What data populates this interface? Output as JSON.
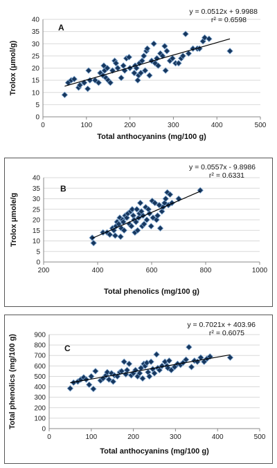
{
  "chart_data": [
    {
      "type": "scatter",
      "panel_label": "A",
      "xlabel": "Total anthocyanins (mg/100 g)",
      "ylabel": "Trolox (μmol/g)",
      "xlim": [
        0,
        500
      ],
      "ylim": [
        0,
        40
      ],
      "xticks": [
        "0",
        "100",
        "200",
        "300",
        "400",
        "500"
      ],
      "yticks": [
        "0",
        "5",
        "10",
        "15",
        "20",
        "25",
        "30",
        "35",
        "40"
      ],
      "equation": "y = 0.0512x + 9.9988",
      "r2": "r² = 0.6598",
      "trendline": {
        "slope": 0.0512,
        "intercept": 9.9988,
        "x_range": [
          50,
          430
        ]
      },
      "marker_color": "#17375e",
      "points": [
        [
          50,
          9
        ],
        [
          58,
          14
        ],
        [
          65,
          15
        ],
        [
          72,
          15.5
        ],
        [
          82,
          12
        ],
        [
          85,
          13
        ],
        [
          95,
          14
        ],
        [
          103,
          11.5
        ],
        [
          105,
          19
        ],
        [
          108,
          15
        ],
        [
          120,
          15
        ],
        [
          128,
          14
        ],
        [
          132,
          18
        ],
        [
          138,
          17
        ],
        [
          140,
          21
        ],
        [
          142,
          19
        ],
        [
          145,
          16
        ],
        [
          148,
          20
        ],
        [
          150,
          15
        ],
        [
          155,
          14
        ],
        [
          160,
          19
        ],
        [
          165,
          23
        ],
        [
          168,
          22
        ],
        [
          172,
          20
        ],
        [
          180,
          16
        ],
        [
          185,
          21
        ],
        [
          188,
          19
        ],
        [
          192,
          24
        ],
        [
          198,
          24.5
        ],
        [
          200,
          20
        ],
        [
          210,
          18
        ],
        [
          212,
          21
        ],
        [
          215,
          20
        ],
        [
          218,
          15
        ],
        [
          220,
          17
        ],
        [
          222,
          22
        ],
        [
          225,
          18
        ],
        [
          228,
          23
        ],
        [
          232,
          25
        ],
        [
          235,
          19
        ],
        [
          238,
          27
        ],
        [
          240,
          28
        ],
        [
          245,
          17
        ],
        [
          250,
          23
        ],
        [
          255,
          30
        ],
        [
          258,
          22
        ],
        [
          262,
          24
        ],
        [
          265,
          21
        ],
        [
          270,
          26
        ],
        [
          275,
          25
        ],
        [
          280,
          29
        ],
        [
          282,
          19
        ],
        [
          285,
          27
        ],
        [
          292,
          23
        ],
        [
          298,
          24
        ],
        [
          305,
          22
        ],
        [
          312,
          22
        ],
        [
          318,
          24
        ],
        [
          322,
          25
        ],
        [
          328,
          34
        ],
        [
          335,
          26
        ],
        [
          345,
          28
        ],
        [
          355,
          28
        ],
        [
          360,
          28
        ],
        [
          368,
          31
        ],
        [
          372,
          32.5
        ],
        [
          382,
          32
        ],
        [
          430,
          27
        ]
      ]
    },
    {
      "type": "scatter",
      "panel_label": "B",
      "xlabel": "Total phenolics (mg/100 g)",
      "ylabel": "Trolox μmole/g",
      "xlim": [
        200,
        1000
      ],
      "ylim": [
        0,
        40
      ],
      "xticks": [
        "200",
        "400",
        "600",
        "800",
        "1000"
      ],
      "yticks": [
        "0",
        "5",
        "10",
        "15",
        "20",
        "25",
        "30",
        "35",
        "40"
      ],
      "equation": "y = 0.0557x - 9.8986",
      "r2": "r² = 0.6331",
      "trendline": {
        "slope": 0.0557,
        "intercept": -9.8986,
        "x_range": [
          380,
          780
        ]
      },
      "marker_color": "#17375e",
      "points": [
        [
          380,
          11.5
        ],
        [
          385,
          9
        ],
        [
          420,
          14
        ],
        [
          435,
          14
        ],
        [
          445,
          13
        ],
        [
          455,
          16
        ],
        [
          460,
          15
        ],
        [
          465,
          12.5
        ],
        [
          468,
          17
        ],
        [
          472,
          19
        ],
        [
          478,
          18
        ],
        [
          482,
          21
        ],
        [
          485,
          12
        ],
        [
          488,
          16
        ],
        [
          492,
          20
        ],
        [
          495,
          19
        ],
        [
          498,
          15
        ],
        [
          502,
          22
        ],
        [
          508,
          21
        ],
        [
          512,
          23
        ],
        [
          518,
          18
        ],
        [
          522,
          24
        ],
        [
          525,
          17
        ],
        [
          528,
          25
        ],
        [
          532,
          22
        ],
        [
          535,
          20
        ],
        [
          538,
          14
        ],
        [
          542,
          19
        ],
        [
          545,
          25
        ],
        [
          548,
          15
        ],
        [
          552,
          21
        ],
        [
          555,
          23
        ],
        [
          558,
          28
        ],
        [
          562,
          24
        ],
        [
          565,
          17
        ],
        [
          568,
          22
        ],
        [
          572,
          18
        ],
        [
          578,
          26
        ],
        [
          582,
          20
        ],
        [
          588,
          25
        ],
        [
          592,
          23
        ],
        [
          598,
          17
        ],
        [
          602,
          29
        ],
        [
          605,
          21
        ],
        [
          612,
          28
        ],
        [
          618,
          20
        ],
        [
          622,
          22
        ],
        [
          628,
          27
        ],
        [
          632,
          16
        ],
        [
          638,
          24
        ],
        [
          642,
          26
        ],
        [
          648,
          28
        ],
        [
          652,
          30
        ],
        [
          658,
          33
        ],
        [
          662,
          27
        ],
        [
          668,
          32
        ],
        [
          675,
          28
        ],
        [
          700,
          30
        ],
        [
          780,
          34
        ]
      ]
    },
    {
      "type": "scatter",
      "panel_label": "C",
      "xlabel": "Total anthocyanins (mg/100 g)",
      "ylabel": "Total phenolics (mg/100 g)",
      "xlim": [
        0,
        500
      ],
      "ylim": [
        0,
        900
      ],
      "xticks": [
        "0",
        "100",
        "200",
        "300",
        "400",
        "500"
      ],
      "yticks": [
        "0",
        "100",
        "200",
        "300",
        "400",
        "500",
        "600",
        "700",
        "800",
        "900"
      ],
      "equation": "y = 0.7021x + 403.96",
      "r2": "r² = 0.6075",
      "trendline": {
        "slope": 0.7021,
        "intercept": 403.96,
        "x_range": [
          50,
          430
        ]
      },
      "marker_color": "#17375e",
      "points": [
        [
          50,
          385
        ],
        [
          58,
          440
        ],
        [
          68,
          450
        ],
        [
          75,
          470
        ],
        [
          82,
          490
        ],
        [
          88,
          470
        ],
        [
          95,
          420
        ],
        [
          100,
          500
        ],
        [
          105,
          380
        ],
        [
          110,
          550
        ],
        [
          122,
          460
        ],
        [
          128,
          480
        ],
        [
          135,
          510
        ],
        [
          138,
          540
        ],
        [
          142,
          470
        ],
        [
          148,
          530
        ],
        [
          152,
          450
        ],
        [
          155,
          510
        ],
        [
          162,
          500
        ],
        [
          168,
          540
        ],
        [
          172,
          550
        ],
        [
          178,
          640
        ],
        [
          182,
          520
        ],
        [
          185,
          560
        ],
        [
          190,
          620
        ],
        [
          195,
          510
        ],
        [
          200,
          530
        ],
        [
          205,
          560
        ],
        [
          210,
          500
        ],
        [
          215,
          530
        ],
        [
          218,
          580
        ],
        [
          222,
          480
        ],
        [
          225,
          620
        ],
        [
          228,
          600
        ],
        [
          232,
          630
        ],
        [
          235,
          540
        ],
        [
          238,
          500
        ],
        [
          242,
          640
        ],
        [
          246,
          570
        ],
        [
          250,
          530
        ],
        [
          255,
          710
        ],
        [
          258,
          580
        ],
        [
          262,
          560
        ],
        [
          268,
          600
        ],
        [
          275,
          640
        ],
        [
          280,
          600
        ],
        [
          282,
          580
        ],
        [
          285,
          650
        ],
        [
          290,
          560
        ],
        [
          298,
          590
        ],
        [
          305,
          620
        ],
        [
          312,
          610
        ],
        [
          318,
          630
        ],
        [
          325,
          660
        ],
        [
          332,
          780
        ],
        [
          338,
          590
        ],
        [
          345,
          650
        ],
        [
          352,
          640
        ],
        [
          360,
          680
        ],
        [
          368,
          640
        ],
        [
          375,
          670
        ],
        [
          382,
          690
        ],
        [
          430,
          680
        ]
      ]
    }
  ]
}
